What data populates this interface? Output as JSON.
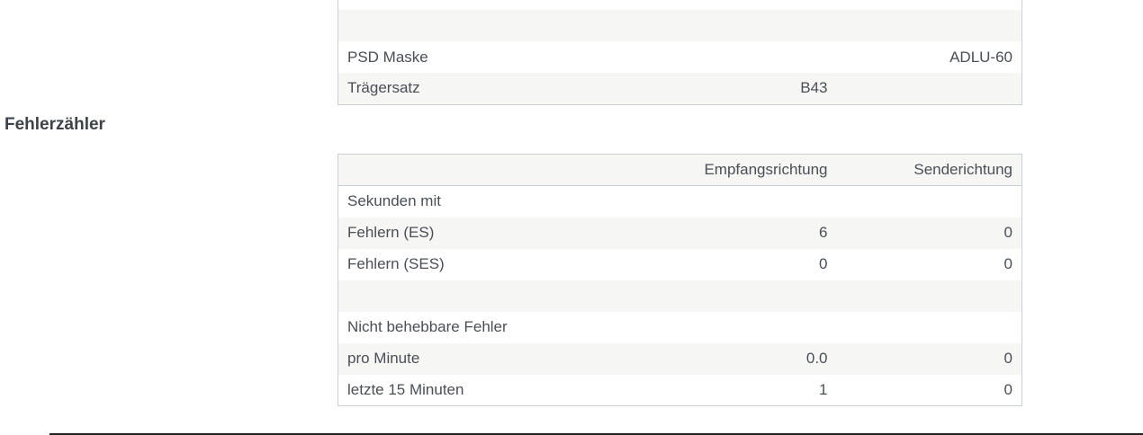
{
  "line_info_table": {
    "rows": [
      {
        "label": "",
        "rx": "",
        "tx": ""
      },
      {
        "label": "",
        "rx": "",
        "tx": ""
      },
      {
        "label": "PSD Maske",
        "rx": "",
        "tx": "ADLU-60"
      },
      {
        "label": "Trägersatz",
        "rx": "B43",
        "tx": ""
      }
    ]
  },
  "error_counter": {
    "title": "Fehlerzähler",
    "headers": [
      "",
      "Empfangsrichtung",
      "Senderichtung"
    ],
    "rows": [
      {
        "label": "Sekunden mit",
        "rx": "",
        "tx": ""
      },
      {
        "label": "Fehlern (ES)",
        "rx": "6",
        "tx": "0"
      },
      {
        "label": "Fehlern (SES)",
        "rx": "0",
        "tx": "0"
      },
      {
        "label": "",
        "rx": "",
        "tx": ""
      },
      {
        "label": "Nicht behebbare Fehler",
        "rx": "",
        "tx": ""
      },
      {
        "label": "pro Minute",
        "rx": "0.0",
        "tx": "0"
      },
      {
        "label": "letzte 15 Minuten",
        "rx": "1",
        "tx": "0"
      }
    ]
  }
}
